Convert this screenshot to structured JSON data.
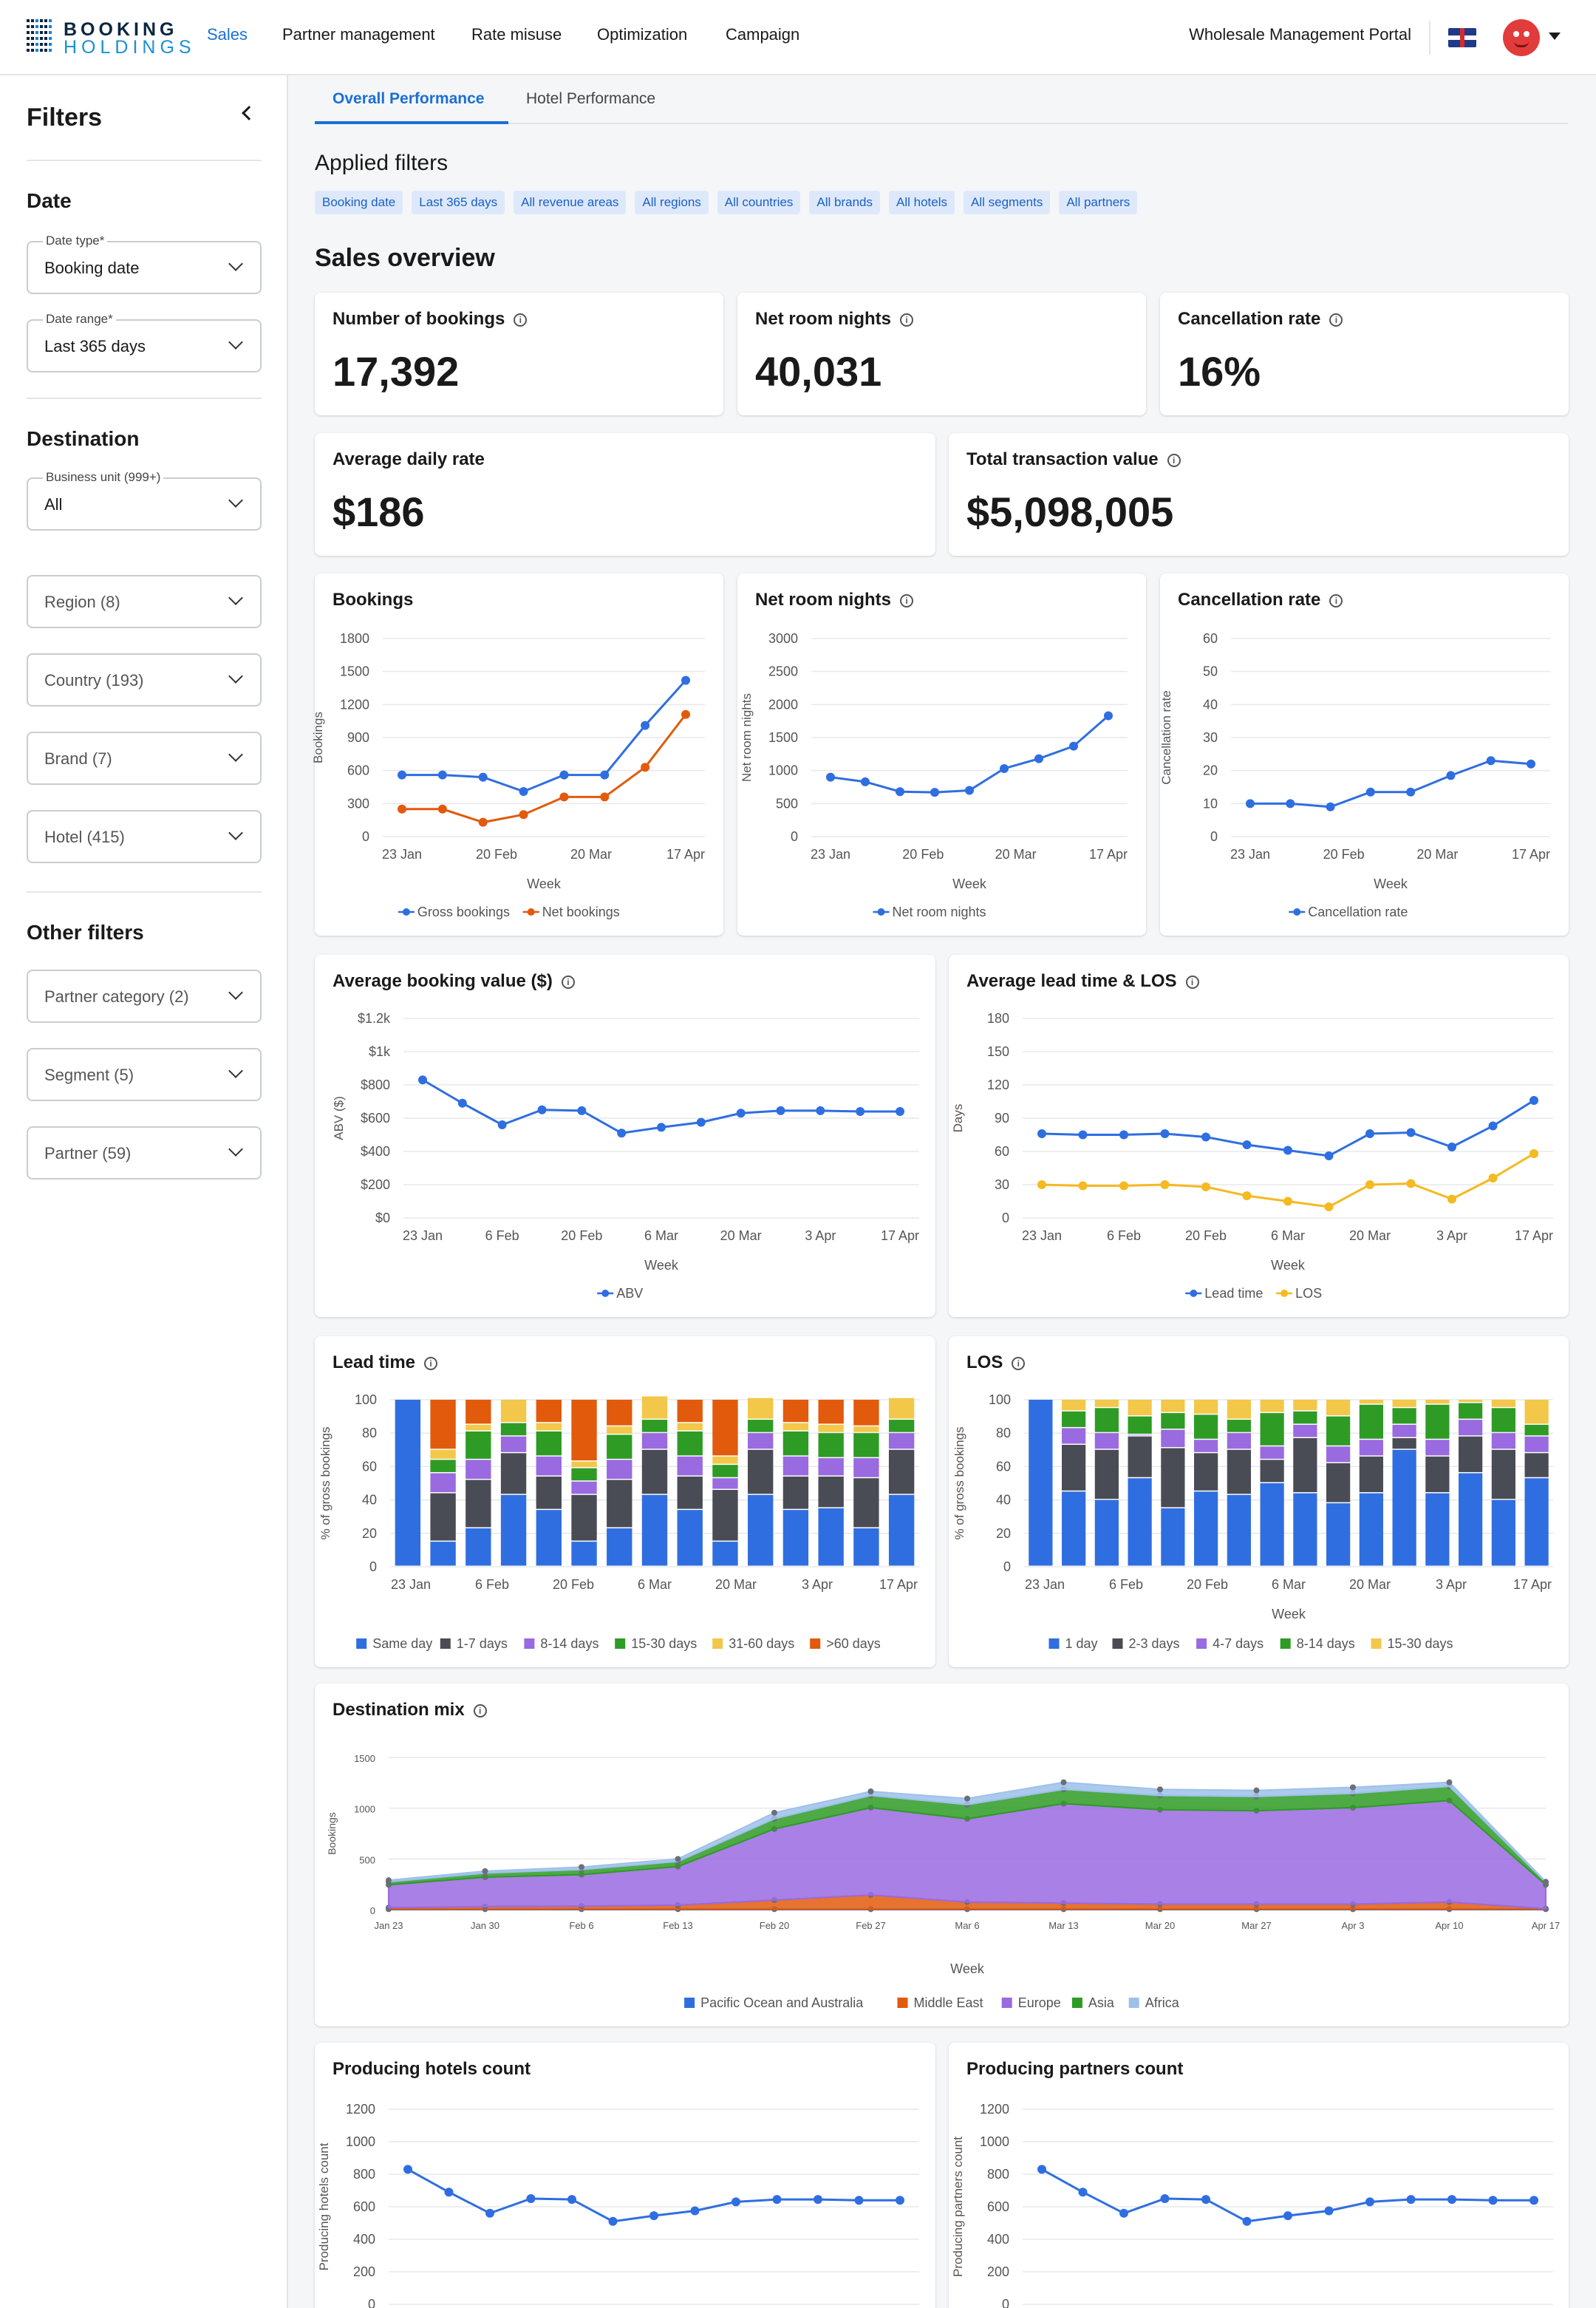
{
  "header": {
    "logo_line1": "BOOKING",
    "logo_line2": "HOLDINGS",
    "nav": [
      "Sales",
      "Partner management",
      "Rate misuse",
      "Optimization",
      "Campaign"
    ],
    "portal": "Wholesale Management Portal"
  },
  "sidebar": {
    "title": "Filters",
    "sections": {
      "date": "Date",
      "destination": "Destination",
      "other": "Other filters"
    },
    "date_type": {
      "label": "Date type*",
      "value": "Booking date"
    },
    "date_range": {
      "label": "Date range*",
      "value": "Last 365 days"
    },
    "business_unit": {
      "label": "Business unit (999+)",
      "value": "All"
    },
    "dropdowns": [
      "Region (8)",
      "Country (193)",
      "Brand (7)",
      "Hotel (415)"
    ],
    "other_dropdowns": [
      "Partner category (2)",
      "Segment (5)",
      "Partner (59)"
    ]
  },
  "tabs": [
    "Overall Performance",
    "Hotel Performance"
  ],
  "applied_filters": {
    "title": "Applied filters",
    "chips": [
      "Booking date",
      "Last 365 days",
      "All revenue areas",
      "All regions",
      "All countries",
      "All brands",
      "All hotels",
      "All segments",
      "All partners"
    ]
  },
  "sales_overview": {
    "title": "Sales overview",
    "kpis": [
      {
        "label": "Number of bookings",
        "value": "17,392"
      },
      {
        "label": "Net room nights",
        "value": "40,031"
      },
      {
        "label": "Cancellation rate",
        "value": "16%"
      },
      {
        "label": "Average daily rate",
        "value": "$186"
      },
      {
        "label": "Total transaction value",
        "value": "$5,098,005"
      }
    ]
  },
  "colors": {
    "blue": "#2f6ee0",
    "orange": "#e25a0c",
    "yellow": "#f5b921",
    "dark": "#4a4c55",
    "purple": "#9a6ae0",
    "green": "#2e9b25",
    "lightyellow": "#f3c74a",
    "lightblue": "#9ec1ea"
  },
  "chart_data": [
    {
      "id": "bookings",
      "type": "line",
      "title": "Bookings",
      "xlabel": "Week",
      "ylabel": "Bookings",
      "ylim": [
        0,
        1800
      ],
      "yticks": [
        "0",
        "300",
        "600",
        "900",
        "1200",
        "1500",
        "1800"
      ],
      "xticks": [
        "23 Jan",
        "20 Feb",
        "20 Mar",
        "17 Apr"
      ],
      "series": [
        {
          "name": "Gross bookings",
          "color": "#2f6ee0",
          "values": [
            560,
            560,
            540,
            410,
            560,
            560,
            1010,
            1420
          ]
        },
        {
          "name": "Net bookings",
          "color": "#e25a0c",
          "values": [
            250,
            250,
            130,
            200,
            360,
            360,
            630,
            1110
          ]
        }
      ]
    },
    {
      "id": "net_room_nights",
      "type": "line",
      "title": "Net room nights",
      "xlabel": "Week",
      "ylabel": "Net room nights",
      "ylim": [
        0,
        3000
      ],
      "yticks": [
        "0",
        "500",
        "1000",
        "1500",
        "2000",
        "2500",
        "3000"
      ],
      "xticks": [
        "23 Jan",
        "20 Feb",
        "20 Mar",
        "17 Apr"
      ],
      "series": [
        {
          "name": "Net room nights",
          "color": "#2f6ee0",
          "values": [
            900,
            830,
            680,
            670,
            700,
            1030,
            1180,
            1370,
            1830
          ]
        }
      ]
    },
    {
      "id": "cancellation_rate",
      "type": "line",
      "title": "Cancellation rate",
      "xlabel": "Week",
      "ylabel": "Cancellation rate",
      "ylim": [
        0,
        60
      ],
      "yticks": [
        "0",
        "10",
        "20",
        "30",
        "40",
        "50",
        "60"
      ],
      "xticks": [
        "23 Jan",
        "20 Feb",
        "20 Mar",
        "17 Apr"
      ],
      "series": [
        {
          "name": "Cancellation rate",
          "color": "#2f6ee0",
          "values": [
            10,
            10,
            9,
            13.5,
            13.5,
            18.5,
            23,
            22
          ]
        }
      ]
    },
    {
      "id": "abv",
      "type": "line",
      "title": "Average booking value ($)",
      "xlabel": "Week",
      "ylabel": "ABV ($)",
      "ylim": [
        0,
        1200
      ],
      "yticks": [
        "$0",
        "$200",
        "$400",
        "$600",
        "$800",
        "$1k",
        "$1.2k"
      ],
      "xticks": [
        "23 Jan",
        "6 Feb",
        "20 Feb",
        "6 Mar",
        "20 Mar",
        "3 Apr",
        "17 Apr"
      ],
      "series": [
        {
          "name": "ABV",
          "color": "#2f6ee0",
          "values": [
            830,
            690,
            560,
            650,
            645,
            510,
            545,
            575,
            630,
            645,
            645,
            640,
            640
          ]
        }
      ]
    },
    {
      "id": "lead_los",
      "type": "line",
      "title": "Average lead time & LOS",
      "xlabel": "Week",
      "ylabel": "Days",
      "ylim": [
        0,
        180
      ],
      "yticks": [
        "0",
        "30",
        "60",
        "90",
        "120",
        "150",
        "180"
      ],
      "xticks": [
        "23 Jan",
        "6 Feb",
        "20 Feb",
        "6 Mar",
        "20 Mar",
        "3 Apr",
        "17 Apr"
      ],
      "series": [
        {
          "name": "Lead time",
          "color": "#2f6ee0",
          "values": [
            76,
            75,
            75,
            76,
            73,
            66,
            61,
            56,
            76,
            77,
            64,
            83,
            106
          ]
        },
        {
          "name": "LOS",
          "color": "#f5b921",
          "values": [
            30,
            29,
            29,
            30,
            28,
            20,
            15,
            10,
            30,
            31,
            17,
            36,
            58
          ]
        }
      ]
    },
    {
      "id": "lead_time",
      "type": "stacked_bar",
      "title": "Lead time",
      "xlabel": "",
      "ylabel": "% of gross bookings",
      "ylim": [
        0,
        100
      ],
      "yticks": [
        "0",
        "20",
        "40",
        "60",
        "80",
        "100"
      ],
      "xticks": [
        "23 Jan",
        "6 Feb",
        "20 Feb",
        "6 Mar",
        "20 Mar",
        "3 Apr",
        "17 Apr"
      ],
      "series": [
        {
          "name": "Same day",
          "color": "#2f6ee0",
          "values": [
            100,
            15,
            23,
            43,
            34,
            15,
            23,
            43,
            34,
            15,
            43,
            34,
            35,
            23,
            43
          ]
        },
        {
          "name": "1-7 days",
          "color": "#4a4c55",
          "values": [
            0,
            29,
            29,
            25,
            20,
            28,
            29,
            27,
            20,
            31,
            27,
            20,
            19,
            30,
            27
          ]
        },
        {
          "name": "8-14 days",
          "color": "#9a6ae0",
          "values": [
            0,
            12,
            12,
            10,
            12,
            8,
            12,
            10,
            12,
            7,
            10,
            12,
            11,
            12,
            10
          ]
        },
        {
          "name": "15-30 days",
          "color": "#2e9b25",
          "values": [
            0,
            8,
            17,
            8,
            15,
            8,
            15,
            8,
            15,
            8,
            8,
            15,
            15,
            15,
            8
          ]
        },
        {
          "name": "31-60 days",
          "color": "#f3c74a",
          "values": [
            0,
            6,
            4,
            14,
            5,
            4,
            5,
            14,
            5,
            5,
            13,
            5,
            5,
            4,
            13
          ]
        },
        {
          "name": ">60 days",
          "color": "#e25a0c",
          "values": [
            0,
            30,
            15,
            0,
            14,
            37,
            16,
            0,
            14,
            34,
            0,
            14,
            15,
            16,
            0
          ]
        }
      ]
    },
    {
      "id": "los",
      "type": "stacked_bar",
      "title": "LOS",
      "xlabel": "Week",
      "ylabel": "% of gross bookings",
      "ylim": [
        0,
        100
      ],
      "yticks": [
        "0",
        "20",
        "40",
        "60",
        "80",
        "100"
      ],
      "xticks": [
        "23 Jan",
        "6 Feb",
        "20 Feb",
        "6 Mar",
        "20 Mar",
        "3 Apr",
        "17 Apr"
      ],
      "series": [
        {
          "name": "1 day",
          "color": "#2f6ee0",
          "values": [
            100,
            45,
            40,
            53,
            35,
            45,
            43,
            50,
            44,
            38,
            44,
            70,
            44,
            56,
            40,
            53
          ]
        },
        {
          "name": "2-3 days",
          "color": "#4a4c55",
          "values": [
            0,
            28,
            30,
            25,
            36,
            23,
            27,
            14,
            33,
            24,
            22,
            7,
            22,
            22,
            30,
            15
          ]
        },
        {
          "name": "4-7 days",
          "color": "#9a6ae0",
          "values": [
            0,
            10,
            10,
            1,
            11,
            8,
            10,
            8,
            8,
            10,
            10,
            8,
            10,
            10,
            10,
            10
          ]
        },
        {
          "name": "8-14 days",
          "color": "#2e9b25",
          "values": [
            0,
            10,
            15,
            11,
            10,
            15,
            8,
            20,
            8,
            18,
            21,
            10,
            21,
            10,
            15,
            7
          ]
        },
        {
          "name": "15-30 days",
          "color": "#f3c74a",
          "values": [
            0,
            7,
            5,
            10,
            8,
            9,
            12,
            8,
            7,
            10,
            3,
            5,
            3,
            2,
            5,
            15
          ]
        }
      ]
    },
    {
      "id": "destination_mix",
      "type": "area",
      "title": "Destination mix",
      "xlabel": "Week",
      "ylabel": "Bookings",
      "ylim": [
        0,
        1500
      ],
      "yticks": [
        "0",
        "500",
        "1000",
        "1500"
      ],
      "xticks": [
        "Jan 23",
        "Jan 30",
        "Feb 6",
        "Feb 13",
        "Feb 20",
        "Feb 27",
        "Mar 6",
        "Mar 13",
        "Mar 20",
        "Mar 27",
        "Apr 3",
        "Apr 10",
        "Apr 17"
      ],
      "series": [
        {
          "name": "Pacific Ocean and Australia",
          "color": "#2f6ee0",
          "values": [
            5,
            5,
            5,
            5,
            5,
            5,
            5,
            5,
            5,
            5,
            5,
            5,
            5
          ]
        },
        {
          "name": "Middle East",
          "color": "#e25a0c",
          "values": [
            15,
            25,
            30,
            40,
            90,
            140,
            70,
            60,
            50,
            50,
            50,
            70,
            5
          ]
        },
        {
          "name": "Europe",
          "color": "#9a6ae0",
          "values": [
            225,
            290,
            310,
            380,
            700,
            860,
            820,
            980,
            930,
            920,
            950,
            1000,
            235
          ]
        },
        {
          "name": "Asia",
          "color": "#2e9b25",
          "values": [
            30,
            40,
            50,
            50,
            100,
            120,
            140,
            140,
            140,
            140,
            140,
            140,
            25
          ]
        },
        {
          "name": "Africa",
          "color": "#9ec1ea",
          "values": [
            15,
            20,
            25,
            25,
            60,
            40,
            60,
            70,
            60,
            60,
            60,
            40,
            5
          ]
        }
      ]
    },
    {
      "id": "hotels_count",
      "type": "line",
      "title": "Producing hotels count",
      "xlabel": "",
      "ylabel": "Producing hotels count",
      "ylim": [
        0,
        1200
      ],
      "yticks": [
        "0",
        "200",
        "400",
        "600",
        "800",
        "1000",
        "1200"
      ],
      "xticks": [],
      "series": [
        {
          "name": "",
          "color": "#2f6ee0",
          "values": [
            830,
            690,
            560,
            650,
            645,
            510,
            545,
            575,
            630,
            645,
            645,
            640,
            640
          ]
        }
      ]
    },
    {
      "id": "partners_count",
      "type": "line",
      "title": "Producing partners count",
      "xlabel": "",
      "ylabel": "Producing partners count",
      "ylim": [
        0,
        1200
      ],
      "yticks": [
        "0",
        "200",
        "400",
        "600",
        "800",
        "1000",
        "1200"
      ],
      "xticks": [],
      "series": [
        {
          "name": "",
          "color": "#2f6ee0",
          "values": [
            830,
            690,
            560,
            650,
            645,
            510,
            545,
            575,
            630,
            645,
            645,
            640,
            640
          ]
        }
      ]
    }
  ]
}
